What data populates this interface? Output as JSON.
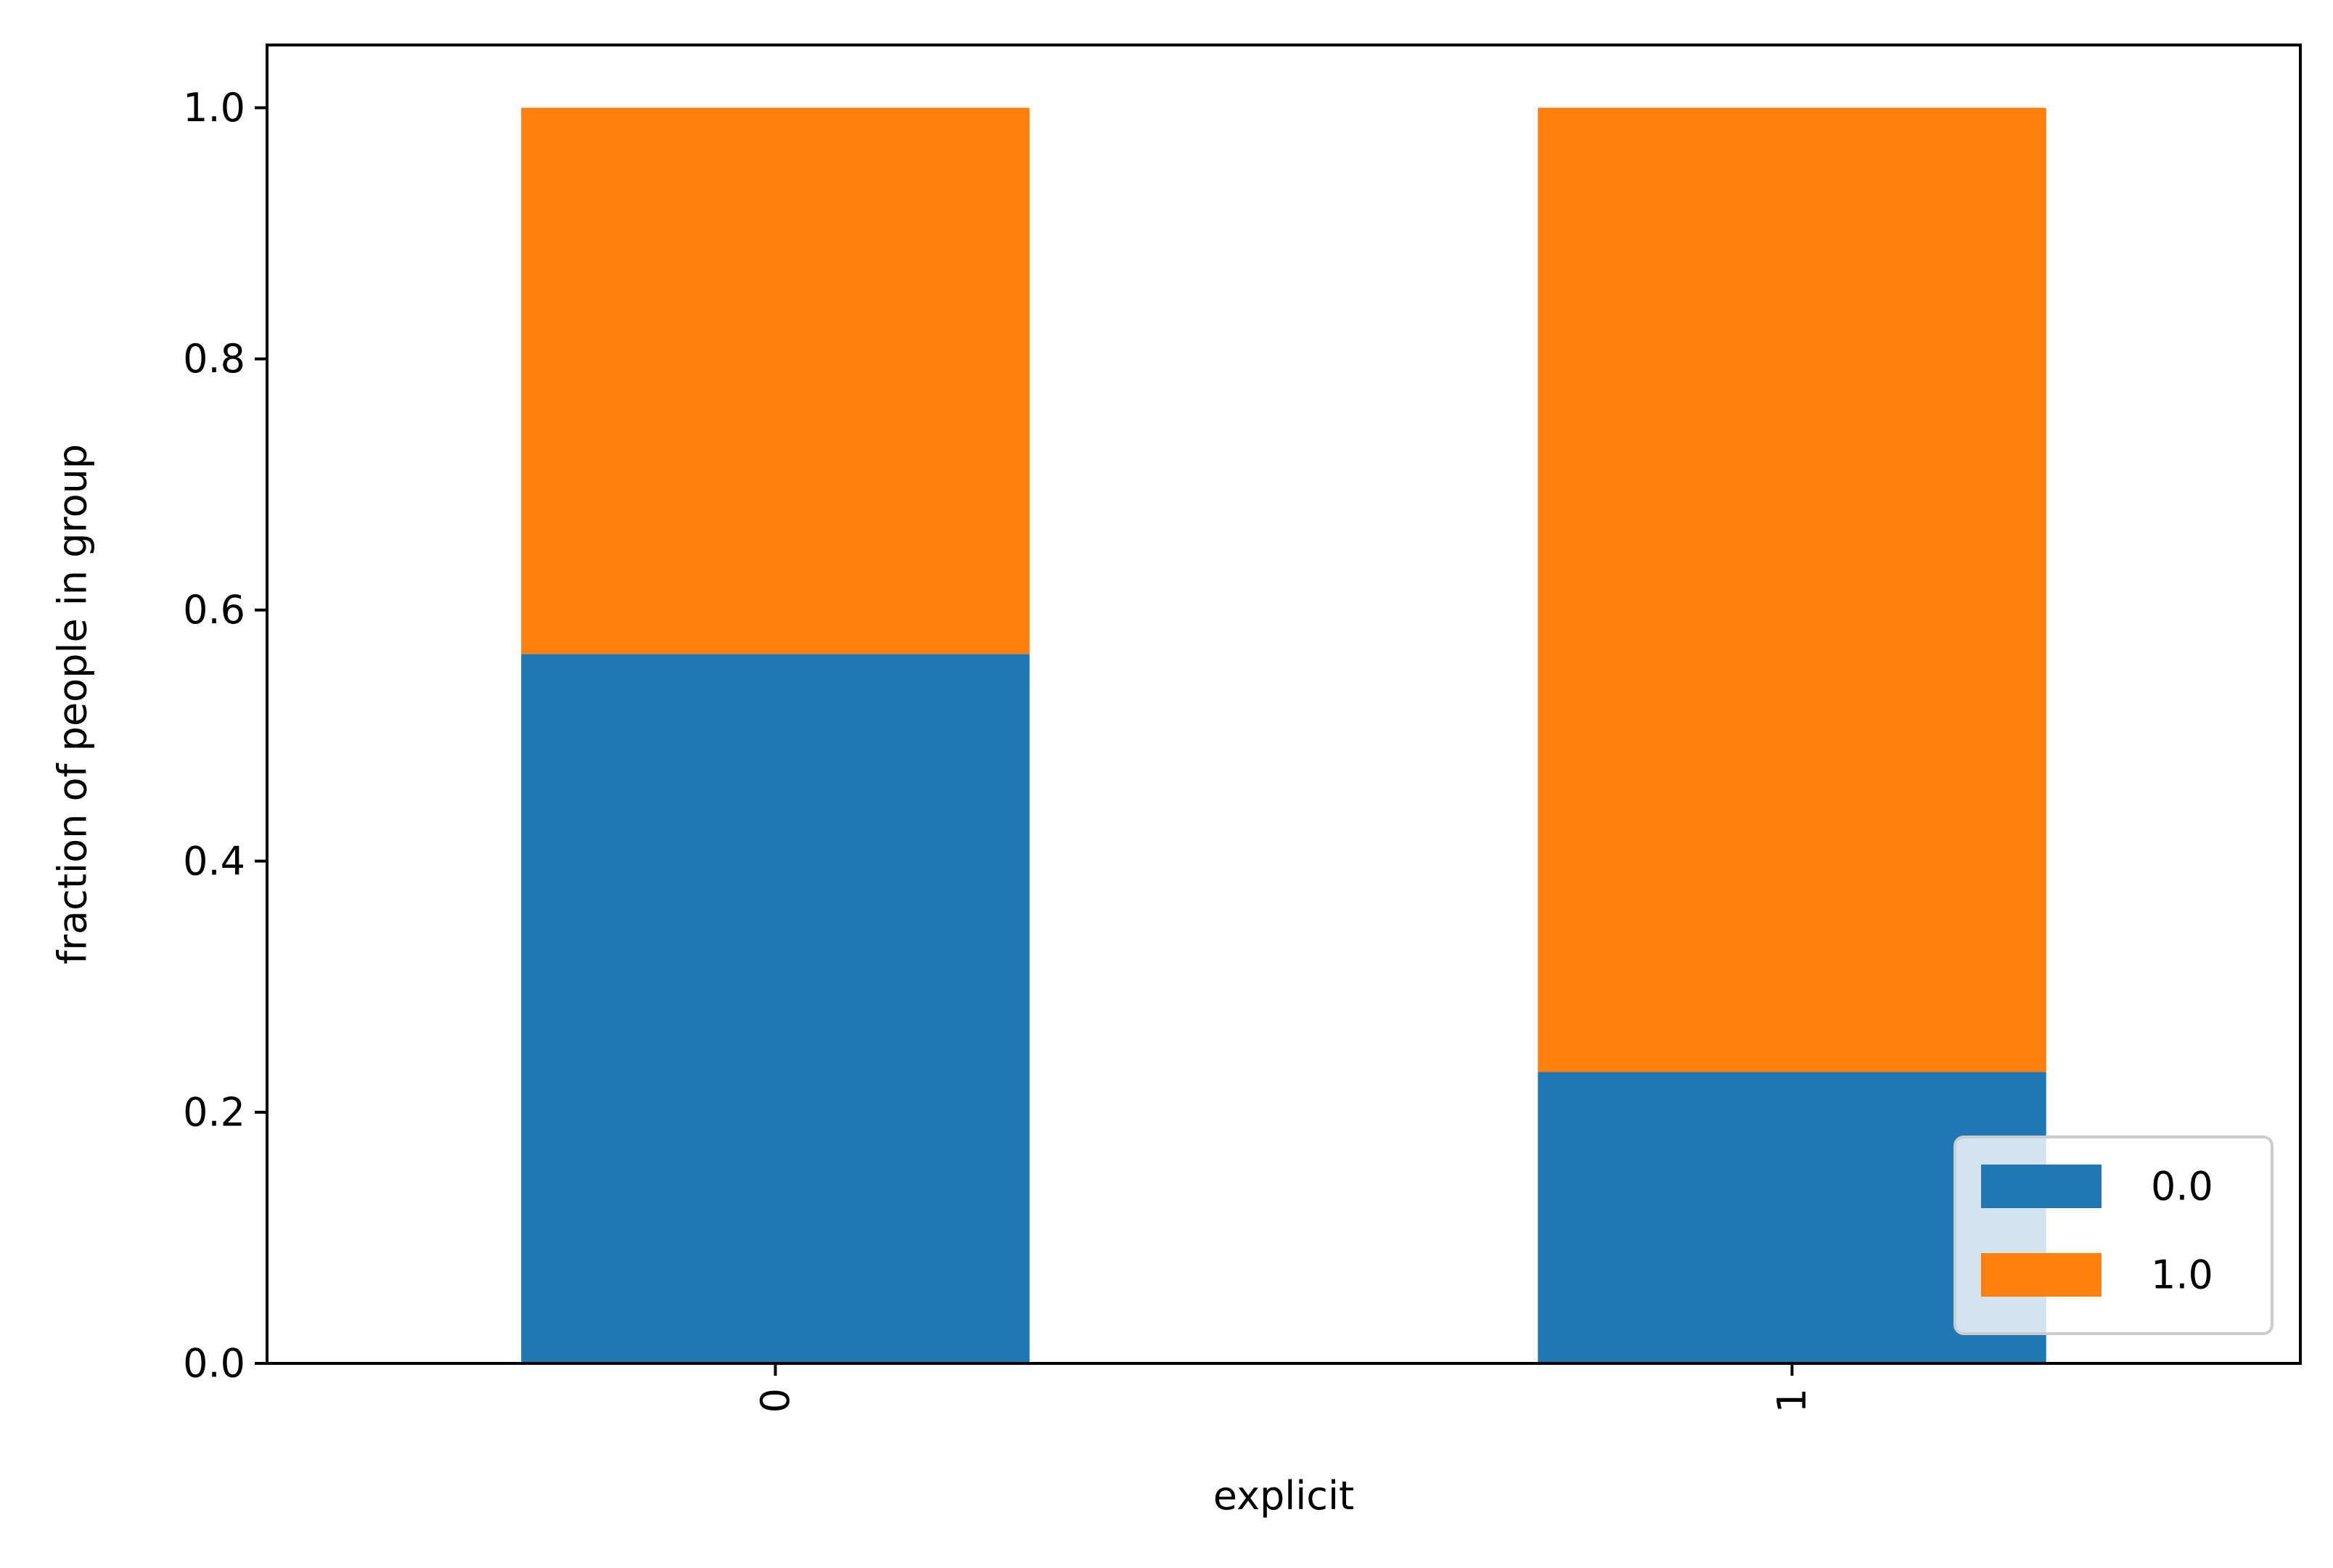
{
  "chart_data": {
    "type": "bar",
    "stacked": true,
    "categories": [
      "0",
      "1"
    ],
    "series": [
      {
        "name": "0.0",
        "values": [
          0.565,
          0.232
        ],
        "color": "#1f77b4"
      },
      {
        "name": "1.0",
        "values": [
          0.435,
          0.768
        ],
        "color": "#ff7f0e"
      }
    ],
    "title": "",
    "xlabel": "explicit",
    "ylabel": "fraction of people in group",
    "ylim": [
      0,
      1.05
    ],
    "yticks": [
      0.0,
      0.2,
      0.4,
      0.6,
      0.8,
      1.0
    ],
    "ytick_labels": [
      "0.0",
      "0.2",
      "0.4",
      "0.6",
      "0.8",
      "1.0"
    ],
    "xtick_rotation": 90,
    "grid": false,
    "legend": {
      "position": "lower-right",
      "entries": [
        "0.0",
        "1.0"
      ]
    }
  }
}
